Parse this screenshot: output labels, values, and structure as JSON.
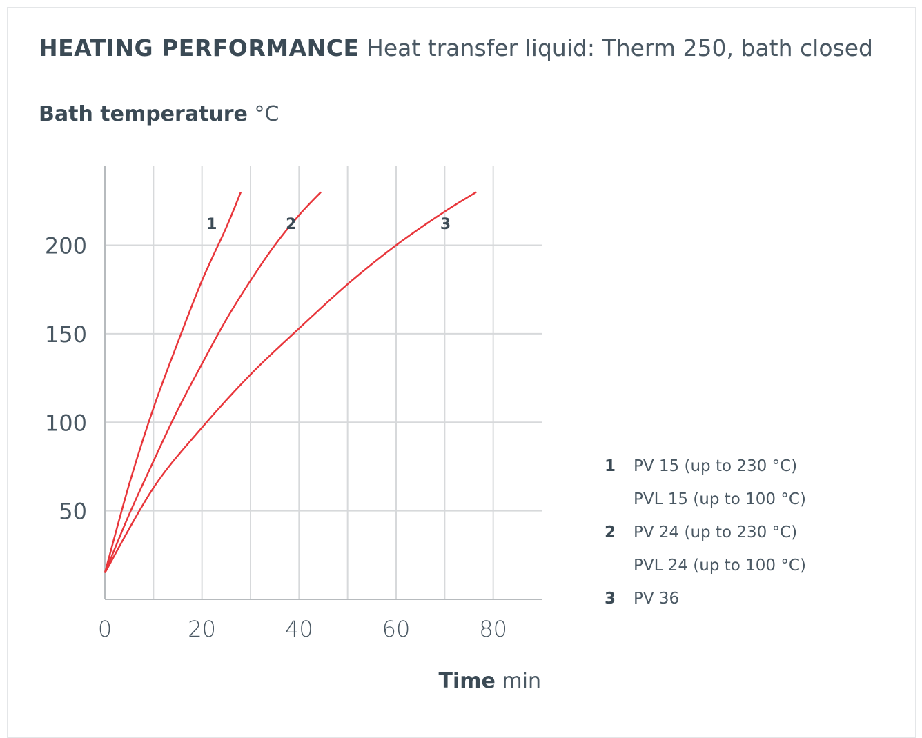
{
  "header": {
    "title_bold": "HEATING PERFORMANCE",
    "title_rest": "Heat transfer liquid: Therm 250, bath closed"
  },
  "axes": {
    "y_bold": "Bath temperature",
    "y_unit": "°C",
    "x_bold": "Time",
    "x_unit": "min"
  },
  "legend": [
    {
      "num": "1",
      "text": "PV 15 (up to 230 °C)"
    },
    {
      "num": "",
      "text": "PVL 15 (up to 100 °C)"
    },
    {
      "num": "2",
      "text": "PV 24 (up to 230 °C)"
    },
    {
      "num": "",
      "text": "PVL 24 (up to 100 °C)"
    },
    {
      "num": "3",
      "text": "PV 36"
    }
  ],
  "colors": {
    "curve": "#e8363b",
    "grid": "#d7d9db",
    "axis": "#b7bbbe",
    "text": "#3b4a55"
  },
  "chart_data": {
    "type": "line",
    "xlim": [
      0,
      90
    ],
    "ylim": [
      0,
      245
    ],
    "xticks": [
      0,
      20,
      40,
      60,
      80
    ],
    "yticks": [
      50,
      100,
      150,
      200
    ],
    "x_gridlines": [
      10,
      20,
      30,
      40,
      50,
      60,
      70,
      80
    ],
    "y_gridlines": [
      50,
      100,
      150,
      200
    ],
    "series": [
      {
        "label": "1",
        "points": [
          [
            0,
            15
          ],
          [
            5,
            65
          ],
          [
            10,
            108
          ],
          [
            15,
            145
          ],
          [
            20,
            180
          ],
          [
            25,
            210
          ],
          [
            28,
            230
          ]
        ]
      },
      {
        "label": "2",
        "points": [
          [
            0,
            15
          ],
          [
            5,
            48
          ],
          [
            10,
            78
          ],
          [
            15,
            107
          ],
          [
            20,
            133
          ],
          [
            25,
            158
          ],
          [
            30,
            180
          ],
          [
            35,
            200
          ],
          [
            40,
            217
          ],
          [
            44.5,
            230
          ]
        ]
      },
      {
        "label": "3",
        "points": [
          [
            0,
            15
          ],
          [
            10,
            63
          ],
          [
            20,
            97
          ],
          [
            30,
            127
          ],
          [
            40,
            153
          ],
          [
            50,
            178
          ],
          [
            60,
            200
          ],
          [
            70,
            219
          ],
          [
            76.5,
            230
          ]
        ]
      }
    ]
  }
}
